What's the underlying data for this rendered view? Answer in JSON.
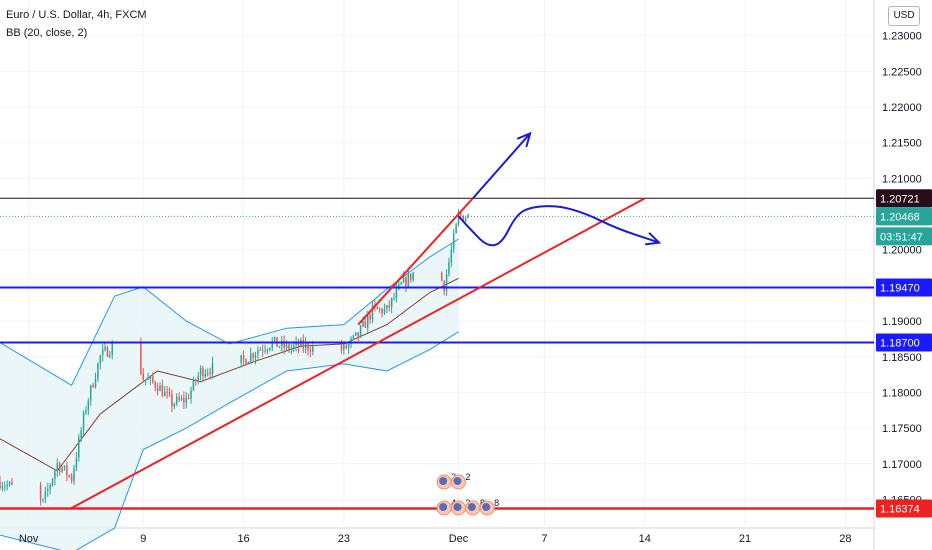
{
  "header": {
    "title": "Euro / U.S. Dollar, 4h, FXCM",
    "indicator": "BB (20, close, 2)"
  },
  "currency_button": "USD",
  "colors": {
    "up": "#26a69a",
    "down": "#ef5350",
    "bb_line": "#7b3f2a",
    "bb_band": "#2196f3",
    "bb_fill": "#e6f4f7",
    "support": "#1a1aff",
    "trend": "#ee2222",
    "projection": "#1a1adb",
    "level_dark": "#2a0d1b",
    "level_current": "#26a69a"
  },
  "chart_data": {
    "type": "candlestick",
    "symbol": "EURUSD",
    "timeframe": "4h",
    "y_axis": {
      "ticks": [
        "1.23000",
        "1.22500",
        "1.22000",
        "1.21500",
        "1.21000",
        "1.20000",
        "1.19000",
        "1.18500",
        "1.18000",
        "1.17500",
        "1.17000",
        "1.16500"
      ],
      "range": [
        1.161,
        1.235
      ]
    },
    "x_axis": {
      "ticks": [
        {
          "label": "Nov",
          "date": "2020-11-01"
        },
        {
          "label": "9",
          "date": "2020-11-09"
        },
        {
          "label": "16",
          "date": "2020-11-16"
        },
        {
          "label": "23",
          "date": "2020-11-23"
        },
        {
          "label": "Dec",
          "date": "2020-12-01"
        },
        {
          "label": "7",
          "date": "2020-12-07"
        },
        {
          "label": "14",
          "date": "2020-12-14"
        },
        {
          "label": "21",
          "date": "2020-12-21"
        },
        {
          "label": "28",
          "date": "2020-12-28"
        }
      ],
      "range": [
        "2020-10-30",
        "2020-12-30"
      ]
    },
    "price_path": [
      {
        "date": "2020-10-30",
        "price": 1.1675
      },
      {
        "date": "2020-11-02",
        "price": 1.1645
      },
      {
        "date": "2020-11-03",
        "price": 1.17
      },
      {
        "date": "2020-11-04",
        "price": 1.168
      },
      {
        "date": "2020-11-05",
        "price": 1.178
      },
      {
        "date": "2020-11-06",
        "price": 1.185
      },
      {
        "date": "2020-11-08",
        "price": 1.1885
      },
      {
        "date": "2020-11-09",
        "price": 1.182
      },
      {
        "date": "2020-11-10",
        "price": 1.181
      },
      {
        "date": "2020-11-11",
        "price": 1.1785
      },
      {
        "date": "2020-11-12",
        "price": 1.179
      },
      {
        "date": "2020-11-13",
        "price": 1.183
      },
      {
        "date": "2020-11-16",
        "price": 1.1845
      },
      {
        "date": "2020-11-17",
        "price": 1.186
      },
      {
        "date": "2020-11-18",
        "price": 1.187
      },
      {
        "date": "2020-11-19",
        "price": 1.1862
      },
      {
        "date": "2020-11-20",
        "price": 1.1865
      },
      {
        "date": "2020-11-23",
        "price": 1.186
      },
      {
        "date": "2020-11-24",
        "price": 1.188
      },
      {
        "date": "2020-11-25",
        "price": 1.1915
      },
      {
        "date": "2020-11-26",
        "price": 1.1915
      },
      {
        "date": "2020-11-27",
        "price": 1.195
      },
      {
        "date": "2020-11-29",
        "price": 1.199
      },
      {
        "date": "2020-11-30",
        "price": 1.195
      },
      {
        "date": "2020-12-01",
        "price": 1.2047
      }
    ],
    "bollinger": {
      "middle": [
        {
          "date": "2020-10-30",
          "price": 1.1735
        },
        {
          "date": "2020-11-03",
          "price": 1.169
        },
        {
          "date": "2020-11-06",
          "price": 1.177
        },
        {
          "date": "2020-11-10",
          "price": 1.183
        },
        {
          "date": "2020-11-13",
          "price": 1.1815
        },
        {
          "date": "2020-11-17",
          "price": 1.1845
        },
        {
          "date": "2020-11-20",
          "price": 1.1865
        },
        {
          "date": "2020-11-23",
          "price": 1.1868
        },
        {
          "date": "2020-11-26",
          "price": 1.1895
        },
        {
          "date": "2020-11-29",
          "price": 1.194
        },
        {
          "date": "2020-12-01",
          "price": 1.196
        }
      ],
      "upper": [
        {
          "date": "2020-10-30",
          "price": 1.187
        },
        {
          "date": "2020-11-04",
          "price": 1.181
        },
        {
          "date": "2020-11-07",
          "price": 1.1935
        },
        {
          "date": "2020-11-09",
          "price": 1.1948
        },
        {
          "date": "2020-11-12",
          "price": 1.19
        },
        {
          "date": "2020-11-15",
          "price": 1.1868
        },
        {
          "date": "2020-11-19",
          "price": 1.189
        },
        {
          "date": "2020-11-23",
          "price": 1.1895
        },
        {
          "date": "2020-11-26",
          "price": 1.1945
        },
        {
          "date": "2020-11-29",
          "price": 1.199
        },
        {
          "date": "2020-12-01",
          "price": 1.2015
        }
      ],
      "lower": [
        {
          "date": "2020-10-30",
          "price": 1.16
        },
        {
          "date": "2020-11-04",
          "price": 1.1575
        },
        {
          "date": "2020-11-07",
          "price": 1.161
        },
        {
          "date": "2020-11-09",
          "price": 1.172
        },
        {
          "date": "2020-11-12",
          "price": 1.175
        },
        {
          "date": "2020-11-15",
          "price": 1.1785
        },
        {
          "date": "2020-11-19",
          "price": 1.183
        },
        {
          "date": "2020-11-23",
          "price": 1.184
        },
        {
          "date": "2020-11-26",
          "price": 1.183
        },
        {
          "date": "2020-11-29",
          "price": 1.186
        },
        {
          "date": "2020-12-01",
          "price": 1.1885
        }
      ]
    },
    "price_labels": [
      {
        "text": "1.20721",
        "price": 1.20721,
        "kind": "level"
      },
      {
        "text": "1.20468",
        "price": 1.20468,
        "kind": "current"
      },
      {
        "text": "03:51:47",
        "kind": "countdown"
      },
      {
        "text": "1.19470",
        "price": 1.1947,
        "kind": "support"
      },
      {
        "text": "1.18700",
        "price": 1.187,
        "kind": "support"
      },
      {
        "text": "1.16374",
        "price": 1.16374,
        "kind": "trend"
      }
    ],
    "drawings": {
      "horizontal_lines": [
        {
          "price": 1.20721,
          "style": "level_dark",
          "from": "2020-10-30"
        },
        {
          "price": 1.1947,
          "style": "support",
          "from": "2020-10-30"
        },
        {
          "price": 1.187,
          "style": "support",
          "from": "2020-10-30"
        },
        {
          "price": 1.16374,
          "style": "trend",
          "from": "2020-10-30"
        }
      ],
      "trend_lines": [
        {
          "from": {
            "date": "2020-11-04",
            "price": 1.1638
          },
          "to": {
            "date": "2020-12-14",
            "price": 1.2072
          }
        },
        {
          "from": {
            "date": "2020-11-24",
            "price": 1.1895
          },
          "to": {
            "date": "2020-12-02",
            "price": 1.2072
          }
        }
      ],
      "projection_up": [
        {
          "date": "2020-12-02",
          "price": 1.2072
        },
        {
          "date": "2020-12-06",
          "price": 1.2163
        }
      ],
      "projection_range": [
        {
          "date": "2020-12-01",
          "price": 1.2047
        },
        {
          "date": "2020-12-02",
          "price": 1.2025
        },
        {
          "date": "2020-12-03",
          "price": 1.2005
        },
        {
          "date": "2020-12-04",
          "price": 1.2008
        },
        {
          "date": "2020-12-05",
          "price": 1.2048
        },
        {
          "date": "2020-12-06",
          "price": 1.206
        },
        {
          "date": "2020-12-08",
          "price": 1.2062
        },
        {
          "date": "2020-12-10",
          "price": 1.205
        },
        {
          "date": "2020-12-12",
          "price": 1.203
        },
        {
          "date": "2020-12-15",
          "price": 1.201
        }
      ]
    },
    "event_markers": [
      {
        "date": "2020-11-30",
        "count": "3",
        "row": 1
      },
      {
        "date": "2020-12-01",
        "count": "2",
        "row": 1
      },
      {
        "date": "2020-11-30",
        "count": "4",
        "row": 2
      },
      {
        "date": "2020-12-01",
        "count": "3",
        "row": 2
      },
      {
        "date": "2020-12-02",
        "count": "8",
        "row": 2
      },
      {
        "date": "2020-12-03",
        "count": "8",
        "row": 2
      }
    ]
  }
}
